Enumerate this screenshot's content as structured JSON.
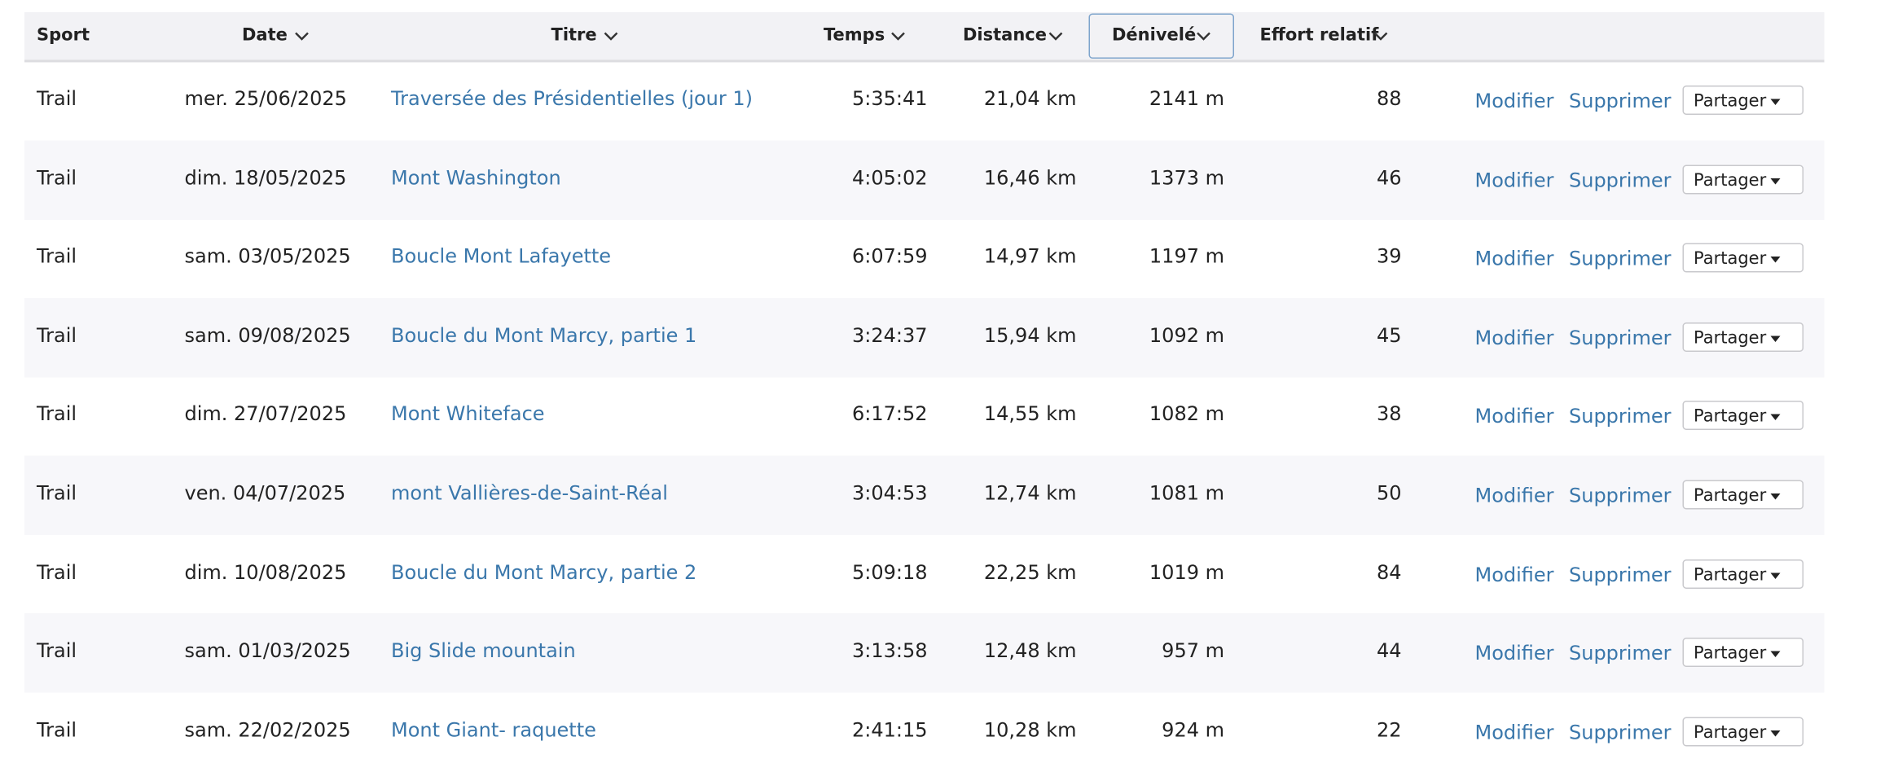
{
  "table": {
    "columns": [
      "Sport",
      "Date",
      "Titre",
      "Temps",
      "Distance",
      "Dénivelé",
      "Effort relatif"
    ],
    "rows": [
      [
        "Trail",
        "mer. 25/06/2025",
        "Traversée des Présidentielles (jour 1)",
        "5:35:41",
        "21,04 km",
        "2141 m",
        "88"
      ],
      [
        "Trail",
        "dim. 18/05/2025",
        "Mont Washington",
        "4:05:02",
        "16,46 km",
        "1373 m",
        "46"
      ],
      [
        "Trail",
        "sam. 03/05/2025",
        "Boucle Mont Lafayette",
        "6:07:59",
        "14,97 km",
        "1197 m",
        "39"
      ],
      [
        "Trail",
        "sam. 09/08/2025",
        "Boucle du Mont Marcy, partie 1",
        "3:24:37",
        "15,94 km",
        "1092 m",
        "45"
      ],
      [
        "Trail",
        "dim. 27/07/2025",
        "Mont Whiteface",
        "6:17:52",
        "14,55 km",
        "1082 m",
        "38"
      ],
      [
        "Trail",
        "ven. 04/07/2025",
        "mont Vallières-de-Saint-Réal",
        "3:04:53",
        "12,74 km",
        "1081 m",
        "50"
      ],
      [
        "Trail",
        "dim. 10/08/2025",
        "Boucle du Mont Marcy, partie 2",
        "5:09:18",
        "22,25 km",
        "1019 m",
        "84"
      ],
      [
        "Trail",
        "sam. 01/03/2025",
        "Big Slide mountain",
        "3:13:58",
        "12,48 km",
        "957 m",
        "44"
      ],
      [
        "Trail",
        "sam. 22/02/2025",
        "Mont Giant- raquette",
        "2:41:15",
        "10,28 km",
        "924 m",
        "22"
      ]
    ],
    "actions": [
      "Modifier",
      "Supprimer",
      "Partager"
    ]
  }
}
